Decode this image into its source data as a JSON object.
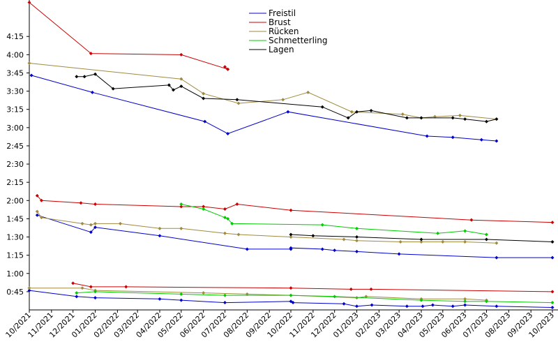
{
  "chart_data": {
    "type": "line",
    "title": "",
    "xlabel": "",
    "ylabel": "",
    "x_range": [
      "2021-10-01",
      "2023-10-01"
    ],
    "ylim_seconds": [
      30,
      285
    ],
    "y_ticks": [
      {
        "label": "0:45",
        "seconds": 45
      },
      {
        "label": "1:00",
        "seconds": 60
      },
      {
        "label": "1:15",
        "seconds": 75
      },
      {
        "label": "1:30",
        "seconds": 90
      },
      {
        "label": "1:45",
        "seconds": 105
      },
      {
        "label": "2:00",
        "seconds": 120
      },
      {
        "label": "2:15",
        "seconds": 135
      },
      {
        "label": "2:30",
        "seconds": 150
      },
      {
        "label": "2:45",
        "seconds": 165
      },
      {
        "label": "3:00",
        "seconds": 180
      },
      {
        "label": "3:15",
        "seconds": 195
      },
      {
        "label": "3:30",
        "seconds": 210
      },
      {
        "label": "3:45",
        "seconds": 225
      },
      {
        "label": "4:00",
        "seconds": 240
      },
      {
        "label": "4:15",
        "seconds": 255
      }
    ],
    "x_ticks": [
      {
        "label": "10/2021",
        "date": "2021-10-01"
      },
      {
        "label": "11/2021",
        "date": "2021-11-01"
      },
      {
        "label": "12/2021",
        "date": "2021-12-01"
      },
      {
        "label": "01/2022",
        "date": "2022-01-01"
      },
      {
        "label": "02/2022",
        "date": "2022-02-01"
      },
      {
        "label": "03/2022",
        "date": "2022-03-01"
      },
      {
        "label": "04/2022",
        "date": "2022-04-01"
      },
      {
        "label": "05/2022",
        "date": "2022-05-01"
      },
      {
        "label": "06/2022",
        "date": "2022-06-01"
      },
      {
        "label": "07/2022",
        "date": "2022-07-01"
      },
      {
        "label": "08/2022",
        "date": "2022-08-01"
      },
      {
        "label": "09/2022",
        "date": "2022-09-01"
      },
      {
        "label": "10/2022",
        "date": "2022-10-01"
      },
      {
        "label": "11/2022",
        "date": "2022-11-01"
      },
      {
        "label": "12/2022",
        "date": "2022-12-01"
      },
      {
        "label": "01/2023",
        "date": "2023-01-01"
      },
      {
        "label": "02/2023",
        "date": "2023-02-01"
      },
      {
        "label": "03/2023",
        "date": "2023-03-01"
      },
      {
        "label": "04/2023",
        "date": "2023-04-01"
      },
      {
        "label": "05/2023",
        "date": "2023-05-01"
      },
      {
        "label": "06/2023",
        "date": "2023-06-01"
      },
      {
        "label": "07/2023",
        "date": "2023-07-01"
      },
      {
        "label": "08/2023",
        "date": "2023-08-01"
      },
      {
        "label": "09/2023",
        "date": "2023-09-01"
      },
      {
        "label": "10/2023",
        "date": "2023-10-01"
      }
    ],
    "legend": {
      "placement": "top-center"
    },
    "series": [
      {
        "name": "Freistil",
        "color": "#0000cc",
        "lines": [
          [
            [
              "2021-10-04",
              223
            ],
            [
              "2021-12-28",
              209
            ],
            [
              "2022-06-03",
              185
            ],
            [
              "2022-07-05",
              175
            ],
            [
              "2022-09-27",
              193
            ],
            [
              "2023-04-09",
              173
            ],
            [
              "2023-05-15",
              172
            ],
            [
              "2023-06-24",
              170
            ],
            [
              "2023-07-15",
              169
            ]
          ],
          [
            [
              "2021-10-12",
              108
            ],
            [
              "2021-12-26",
              94
            ],
            [
              "2022-01-01",
              98
            ],
            [
              "2022-04-01",
              91
            ],
            [
              "2022-08-01",
              80
            ],
            [
              "2022-10-01",
              80
            ],
            [
              "2022-10-01",
              81
            ],
            [
              "2022-11-14",
              80
            ],
            [
              "2022-12-01",
              79
            ],
            [
              "2023-01-01",
              78
            ],
            [
              "2023-03-01",
              76
            ],
            [
              "2023-07-15",
              73
            ],
            [
              "2023-10-01",
              73
            ]
          ],
          [
            [
              "2021-10-01",
              46
            ],
            [
              "2021-12-06",
              41
            ],
            [
              "2022-01-01",
              40
            ],
            [
              "2022-04-01",
              39
            ],
            [
              "2022-05-01",
              38
            ],
            [
              "2022-07-01",
              36
            ],
            [
              "2022-10-01",
              37
            ],
            [
              "2022-10-04",
              36
            ],
            [
              "2022-12-14",
              35
            ],
            [
              "2023-01-01",
              33
            ],
            [
              "2023-01-22",
              34
            ],
            [
              "2023-03-12",
              33
            ],
            [
              "2023-04-03",
              33
            ],
            [
              "2023-04-17",
              34
            ],
            [
              "2023-05-15",
              33
            ],
            [
              "2023-06-01",
              34
            ],
            [
              "2023-07-15",
              33
            ],
            [
              "2023-10-01",
              32
            ]
          ]
        ]
      },
      {
        "name": "Brust",
        "color": "#cc0000",
        "lines": [
          [
            [
              "2021-10-01",
              283
            ],
            [
              "2021-12-26",
              241
            ],
            [
              "2022-05-01",
              240
            ],
            [
              "2022-07-05",
              228
            ]
          ],
          [
            [
              "2022-07-01",
              230
            ],
            [
              "2022-07-05",
              228
            ]
          ],
          [
            [
              "2021-10-12",
              124
            ],
            [
              "2021-10-18",
              120
            ],
            [
              "2021-12-12",
              118
            ],
            [
              "2022-01-01",
              117
            ],
            [
              "2022-05-01",
              115
            ],
            [
              "2022-06-01",
              115
            ],
            [
              "2022-07-01",
              113
            ],
            [
              "2022-07-18",
              117
            ],
            [
              "2022-10-01",
              112
            ],
            [
              "2023-06-10",
              104
            ],
            [
              "2023-10-01",
              102
            ]
          ],
          [
            [
              "2021-12-01",
              52
            ],
            [
              "2021-12-26",
              49
            ],
            [
              "2022-02-13",
              49
            ],
            [
              "2022-10-01",
              48
            ],
            [
              "2022-12-24",
              47
            ],
            [
              "2023-01-21",
              47
            ],
            [
              "2023-10-01",
              45
            ]
          ]
        ]
      },
      {
        "name": "Rücken",
        "color": "#a08a40",
        "lines": [
          [
            [
              "2021-10-01",
              233
            ],
            [
              "2022-05-01",
              220
            ],
            [
              "2022-06-01",
              208
            ],
            [
              "2022-07-20",
              200
            ],
            [
              "2022-09-20",
              203
            ],
            [
              "2022-10-25",
              209
            ],
            [
              "2022-12-25",
              193
            ],
            [
              "2023-03-06",
              191
            ],
            [
              "2023-04-01",
              188
            ],
            [
              "2023-04-20",
              189
            ],
            [
              "2023-05-25",
              190
            ],
            [
              "2023-07-15",
              187
            ]
          ],
          [
            [
              "2021-10-12",
              111
            ],
            [
              "2021-10-18",
              106
            ],
            [
              "2021-12-14",
              101
            ],
            [
              "2021-12-26",
              100
            ],
            [
              "2022-01-01",
              101
            ],
            [
              "2022-02-05",
              101
            ],
            [
              "2022-04-01",
              97
            ],
            [
              "2022-05-01",
              97
            ],
            [
              "2022-07-01",
              93
            ],
            [
              "2022-07-20",
              92
            ],
            [
              "2022-10-01",
              90
            ],
            [
              "2022-12-14",
              88
            ],
            [
              "2023-01-01",
              87
            ],
            [
              "2023-03-03",
              86
            ],
            [
              "2023-04-01",
              86
            ],
            [
              "2023-05-01",
              86
            ],
            [
              "2023-06-01",
              86
            ],
            [
              "2023-07-15",
              85
            ]
          ],
          [
            [
              "2021-10-01",
              48
            ],
            [
              "2021-12-14",
              48
            ],
            [
              "2022-01-01",
              46
            ],
            [
              "2022-06-01",
              44
            ],
            [
              "2022-08-01",
              43
            ],
            [
              "2022-10-01",
              42
            ],
            [
              "2023-01-01",
              40
            ],
            [
              "2023-01-14",
              41
            ],
            [
              "2023-04-01",
              39
            ],
            [
              "2023-06-01",
              39
            ],
            [
              "2023-07-01",
              38
            ]
          ]
        ]
      },
      {
        "name": "Schmetterling",
        "color": "#00cc00",
        "lines": [
          [
            [
              "2022-05-01",
              117
            ],
            [
              "2022-06-01",
              113
            ],
            [
              "2022-07-01",
              106
            ],
            [
              "2022-07-05",
              105
            ],
            [
              "2022-07-11",
              101
            ],
            [
              "2022-11-14",
              100
            ],
            [
              "2023-01-01",
              97
            ],
            [
              "2023-04-24",
              93
            ],
            [
              "2023-06-01",
              95
            ],
            [
              "2023-07-01",
              92
            ]
          ],
          [
            [
              "2021-12-06",
              44
            ],
            [
              "2022-01-01",
              45
            ],
            [
              "2022-05-01",
              43
            ],
            [
              "2022-07-01",
              42
            ],
            [
              "2022-10-01",
              42
            ],
            [
              "2022-12-01",
              41
            ],
            [
              "2023-04-01",
              38
            ],
            [
              "2023-06-01",
              37
            ],
            [
              "2023-07-01",
              37
            ],
            [
              "2023-10-01",
              36
            ]
          ]
        ]
      },
      {
        "name": "Lagen",
        "color": "#000000",
        "lines": [
          [
            [
              "2021-12-06",
              222
            ],
            [
              "2021-12-17",
              222
            ],
            [
              "2022-01-01",
              224
            ],
            [
              "2022-01-26",
              212
            ],
            [
              "2022-04-14",
              215
            ],
            [
              "2022-04-20",
              211
            ],
            [
              "2022-05-01",
              214
            ],
            [
              "2022-06-01",
              204
            ],
            [
              "2022-07-18",
              203
            ],
            [
              "2022-11-14",
              197
            ],
            [
              "2022-12-20",
              188
            ],
            [
              "2023-01-01",
              193
            ],
            [
              "2023-01-21",
              194
            ],
            [
              "2023-03-12",
              188
            ],
            [
              "2023-04-01",
              188
            ],
            [
              "2023-05-15",
              188
            ],
            [
              "2023-06-01",
              187
            ],
            [
              "2023-07-01",
              185
            ],
            [
              "2023-07-15",
              187
            ]
          ],
          [
            [
              "2022-10-01",
              92
            ],
            [
              "2022-11-01",
              91
            ],
            [
              "2023-01-01",
              90
            ],
            [
              "2023-04-01",
              88
            ],
            [
              "2023-07-01",
              88
            ],
            [
              "2023-10-01",
              86
            ]
          ]
        ]
      }
    ]
  }
}
